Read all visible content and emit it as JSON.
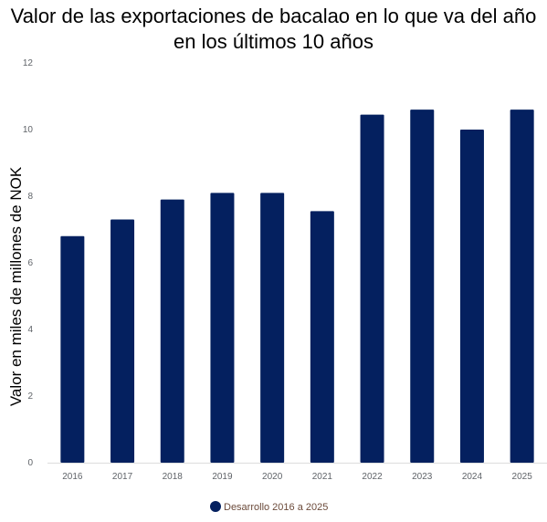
{
  "chart_data": {
    "type": "bar",
    "title": "Valor de las exportaciones de bacalao en lo que va del año en los últimos 10 años",
    "xlabel": "",
    "ylabel": "Valor en miles de millones de NOK",
    "categories": [
      "2016",
      "2017",
      "2018",
      "2019",
      "2020",
      "2021",
      "2022",
      "2023",
      "2024",
      "2025"
    ],
    "series": [
      {
        "name": "Desarrollo 2016 a 2025",
        "values": [
          6.8,
          7.3,
          7.9,
          8.1,
          8.1,
          7.55,
          10.45,
          10.6,
          10.0,
          10.6
        ],
        "color": "#04205f"
      }
    ],
    "ylim": [
      0,
      12
    ],
    "yticks": [
      0,
      2,
      4,
      6,
      8,
      10,
      12
    ],
    "grid": false,
    "legend_position": "bottom"
  }
}
